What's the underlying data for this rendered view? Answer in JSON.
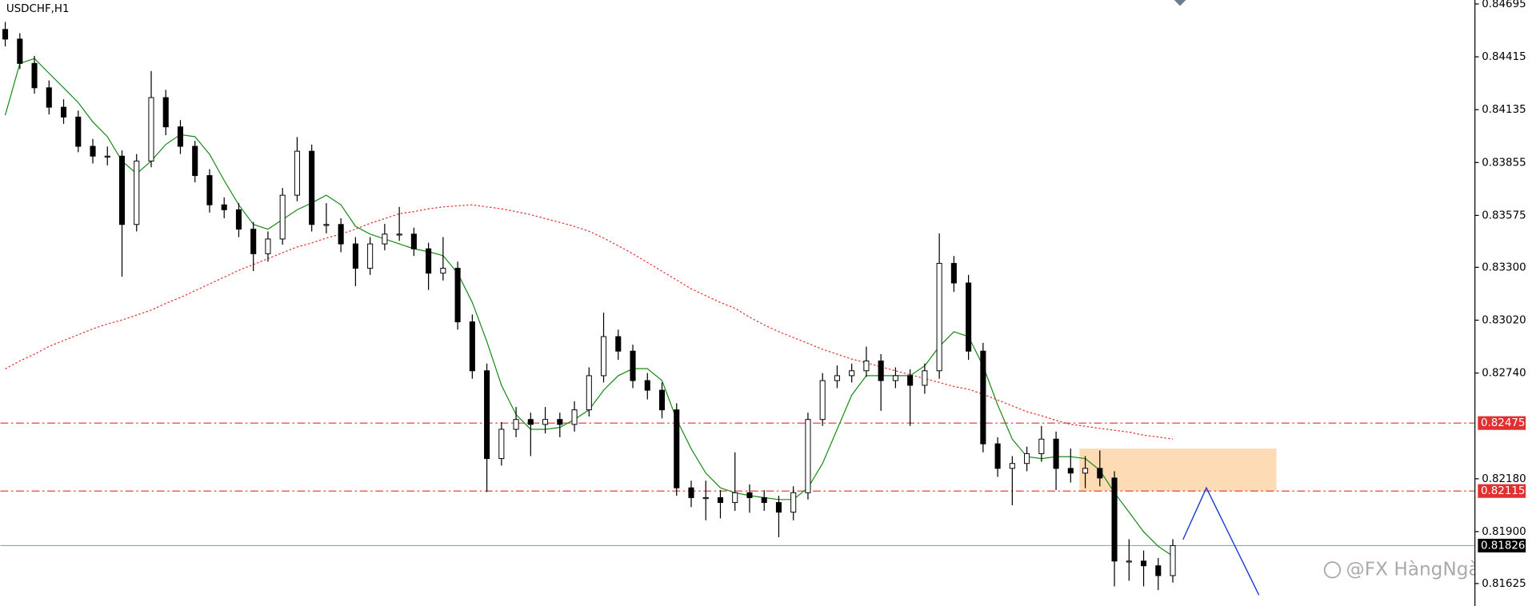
{
  "chart_data": {
    "type": "candlestick",
    "title": "USDCHF,H1",
    "xlim": [
      -0.33,
      100.7
    ],
    "ylim": [
      0.81506,
      0.84716
    ],
    "yticks": [
      0.84695,
      0.84415,
      0.84135,
      0.83855,
      0.83575,
      {
        "value": 0.833,
        "label": "0.83300"
      },
      {
        "value": 0.8302,
        "label": "0.83020"
      },
      {
        "value": 0.8274,
        "label": "0.82740"
      },
      {
        "value": 0.8218,
        "label": "0.82180"
      },
      {
        "value": 0.819,
        "label": "0.81900"
      },
      0.81625
    ],
    "open": [
      0.8456,
      0.84509,
      0.8438,
      0.84251,
      0.84148,
      0.84096,
      0.83941,
      0.83889,
      0.83889,
      0.83527,
      0.83863,
      0.84199,
      0.84044,
      0.83941,
      0.83786,
      0.83631,
      0.83605,
      0.83502,
      0.83372,
      0.8345,
      0.83682,
      0.83915,
      0.83527,
      0.83527,
      0.83424,
      0.83295,
      0.83424,
      0.83476,
      0.83476,
      0.83398,
      0.83269,
      0.83295,
      0.83011,
      0.82752,
      0.82287,
      0.82442,
      0.82494,
      0.82468,
      0.82494,
      0.82468,
      0.82545,
      0.82726,
      0.82933,
      0.82856,
      0.827,
      0.82649,
      0.82545,
      0.82132,
      0.8208,
      0.8208,
      0.82054,
      0.82106,
      0.8208,
      0.82054,
      0.82003,
      0.82106,
      0.82494,
      0.827,
      0.82726,
      0.82752,
      0.82804,
      0.827,
      0.82726,
      0.82675,
      0.82752,
      0.83321,
      0.83217,
      0.82856,
      0.82365,
      0.82235,
      0.82261,
      0.82313,
      0.8239,
      0.82235,
      0.8221,
      0.82235,
      0.82184,
      0.81744,
      0.81744,
      0.81719,
      0.81667
    ],
    "high": [
      0.846,
      0.8454,
      0.8442,
      0.8429,
      0.8419,
      0.8413,
      0.8398,
      0.8394,
      0.8392,
      0.839,
      0.8434,
      0.8424,
      0.8408,
      0.8397,
      0.8382,
      0.8367,
      0.8364,
      0.8354,
      0.8349,
      0.8372,
      0.8399,
      0.8395,
      0.8364,
      0.8356,
      0.8346,
      0.8346,
      0.8353,
      0.8362,
      0.8351,
      0.8343,
      0.8346,
      0.8333,
      0.8305,
      0.8279,
      0.8248,
      0.8256,
      0.8253,
      0.8256,
      0.8253,
      0.8259,
      0.8277,
      0.8306,
      0.8297,
      0.8289,
      0.8274,
      0.8269,
      0.8258,
      0.8217,
      0.8217,
      0.8212,
      0.8232,
      0.8215,
      0.8212,
      0.8209,
      0.8214,
      0.8253,
      0.8274,
      0.8278,
      0.8279,
      0.8288,
      0.8284,
      0.8277,
      0.8276,
      0.8279,
      0.8348,
      0.8336,
      0.8326,
      0.829,
      0.824,
      0.823,
      0.8235,
      0.8246,
      0.8243,
      0.8234,
      0.823,
      0.8233,
      0.8222,
      0.8186,
      0.818,
      0.8176,
      0.8186
    ],
    "low": [
      0.8447,
      0.8435,
      0.8422,
      0.8411,
      0.8406,
      0.8391,
      0.8385,
      0.8384,
      0.8325,
      0.8349,
      0.8383,
      0.84,
      0.839,
      0.8375,
      0.8359,
      0.8356,
      0.8346,
      0.8328,
      0.8333,
      0.8342,
      0.8365,
      0.8349,
      0.8348,
      0.8338,
      0.832,
      0.8326,
      0.8339,
      0.8344,
      0.8336,
      0.8318,
      0.8323,
      0.8297,
      0.8271,
      0.8211,
      0.8225,
      0.824,
      0.823,
      0.8242,
      0.824,
      0.8243,
      0.8251,
      0.8269,
      0.8281,
      0.8266,
      0.826,
      0.825,
      0.8209,
      0.8203,
      0.8196,
      0.8197,
      0.8201,
      0.82,
      0.8201,
      0.8187,
      0.8196,
      0.8207,
      0.8246,
      0.8266,
      0.8269,
      0.8272,
      0.8254,
      0.8266,
      0.8246,
      0.8263,
      0.8271,
      0.8317,
      0.8281,
      0.8232,
      0.8219,
      0.8204,
      0.8222,
      0.8227,
      0.8212,
      0.8216,
      0.8213,
      0.8214,
      0.8161,
      0.8164,
      0.8161,
      0.8159,
      0.8163
    ],
    "close": [
      0.84509,
      0.8438,
      0.84251,
      0.84148,
      0.84096,
      0.83941,
      0.83889,
      0.83889,
      0.83527,
      0.83863,
      0.84199,
      0.84044,
      0.83941,
      0.83786,
      0.83631,
      0.83605,
      0.83502,
      0.83372,
      0.8345,
      0.83682,
      0.83915,
      0.83527,
      0.83527,
      0.83424,
      0.83295,
      0.83424,
      0.83476,
      0.83476,
      0.83398,
      0.83269,
      0.83295,
      0.83011,
      0.82752,
      0.82287,
      0.82442,
      0.82494,
      0.82468,
      0.82494,
      0.82468,
      0.82545,
      0.82726,
      0.82933,
      0.82856,
      0.827,
      0.82649,
      0.82545,
      0.82132,
      0.8208,
      0.8208,
      0.82054,
      0.82106,
      0.8208,
      0.82054,
      0.82003,
      0.82106,
      0.82494,
      0.827,
      0.82726,
      0.82752,
      0.82804,
      0.827,
      0.82726,
      0.82675,
      0.82752,
      0.83321,
      0.83217,
      0.82856,
      0.82365,
      0.82235,
      0.82261,
      0.82313,
      0.8239,
      0.82235,
      0.8221,
      0.82235,
      0.82184,
      0.81744,
      0.81744,
      0.81719,
      0.81667,
      0.81826
    ],
    "series": [
      {
        "color": "#1a8a1a",
        "values": [
          0.84106,
          0.8438,
          0.84406,
          0.84328,
          0.84251,
          0.84173,
          0.8407,
          0.83992,
          0.83863,
          0.83796,
          0.83863,
          0.83951,
          0.84003,
          0.83992,
          0.83899,
          0.8376,
          0.83631,
          0.83527,
          0.83502,
          0.83553,
          0.83605,
          0.83641,
          0.83682,
          0.83631,
          0.83517,
          0.83476,
          0.8345,
          0.83424,
          0.83398,
          0.83383,
          0.83362,
          0.83269,
          0.83114,
          0.82907,
          0.82675,
          0.8252,
          0.82442,
          0.82442,
          0.82452,
          0.82494,
          0.82545,
          0.82649,
          0.82726,
          0.82763,
          0.82763,
          0.827,
          0.82494,
          0.82339,
          0.8221,
          0.82132,
          0.82106,
          0.82091,
          0.8208,
          0.8207,
          0.8207,
          0.82132,
          0.82261,
          0.82442,
          0.82623,
          0.82726,
          0.82726,
          0.82726,
          0.82726,
          0.82778,
          0.82881,
          0.82959,
          0.82933,
          0.82778,
          0.82571,
          0.8239,
          0.82297,
          0.82287,
          0.82297,
          0.82297,
          0.82287,
          0.82225,
          0.82106,
          0.82003,
          0.81899,
          0.81822,
          0.8177
        ]
      },
      {
        "color": "#e83030",
        "dashed": true,
        "values": [
          0.82762,
          0.82804,
          0.8284,
          0.82881,
          0.82912,
          0.82943,
          0.82974,
          0.83,
          0.83021,
          0.83047,
          0.83073,
          0.83109,
          0.8314,
          0.83176,
          0.83212,
          0.83248,
          0.83284,
          0.83315,
          0.83346,
          0.83377,
          0.83408,
          0.83429,
          0.83455,
          0.83476,
          0.83502,
          0.83533,
          0.83558,
          0.83584,
          0.83595,
          0.8361,
          0.8362,
          0.83626,
          0.83631,
          0.8362,
          0.8361,
          0.83595,
          0.83579,
          0.83558,
          0.83538,
          0.83517,
          0.83491,
          0.83455,
          0.83414,
          0.83372,
          0.83326,
          0.83279,
          0.83233,
          0.83186,
          0.8315,
          0.83114,
          0.83083,
          0.83036,
          0.82995,
          0.82959,
          0.82928,
          0.82897,
          0.82866,
          0.8284,
          0.82814,
          0.82794,
          0.82773,
          0.82752,
          0.82731,
          0.82711,
          0.8269,
          0.82669,
          0.82654,
          0.82628,
          0.82597,
          0.82566,
          0.82535,
          0.82514,
          0.82489,
          0.82468,
          0.82458,
          0.82447,
          0.82437,
          0.82427,
          0.82411,
          0.82401,
          0.8239
        ]
      }
    ],
    "levels": [
      0.82475,
      0.82115
    ],
    "level_color": "#e03030",
    "current_price": 0.81826,
    "zone": {
      "x": [
        73.6,
        87.1
      ],
      "y": [
        0.82115,
        0.8234
      ],
      "color": "#fddcb5"
    },
    "projection": {
      "x": [
        80.7,
        82.3,
        85.9
      ],
      "y": [
        0.81858,
        0.82132,
        0.81564
      ],
      "color": "#2040d0"
    },
    "watermark": "@FX HàngNgày"
  }
}
